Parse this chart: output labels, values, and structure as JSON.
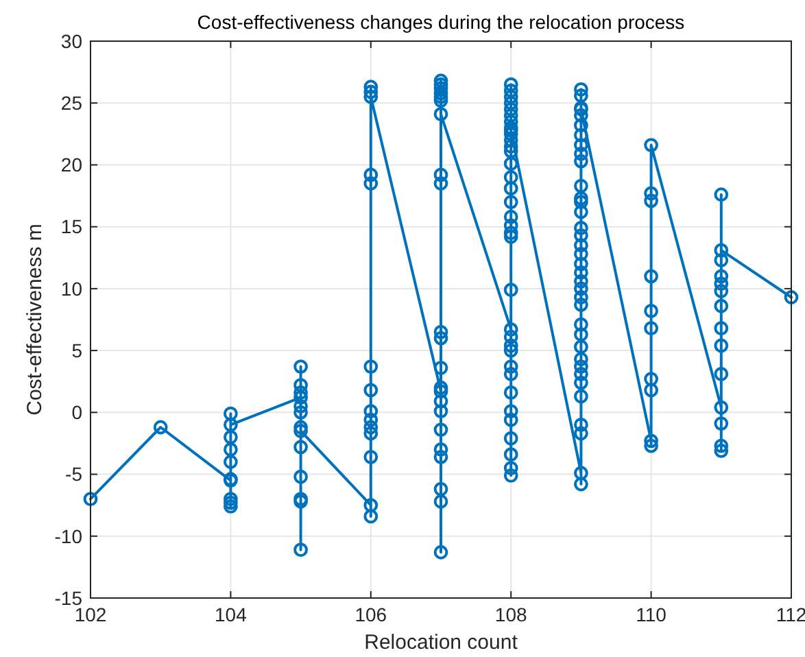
{
  "chart_data": {
    "type": "line",
    "title": "Cost-effectiveness changes during the relocation process",
    "xlabel": "Relocation count",
    "ylabel": "Cost-effectiveness m",
    "xlim": [
      102,
      112
    ],
    "xticks": [
      102,
      104,
      106,
      108,
      110,
      112
    ],
    "ylim": [
      -15,
      30
    ],
    "yticks": [
      -15,
      -10,
      -5,
      0,
      5,
      10,
      15,
      20,
      25,
      30
    ],
    "grid": true,
    "marker": "circle",
    "line_style": "solid",
    "series": [
      {
        "color": "#0072bd",
        "x": [
          102,
          103,
          104,
          104,
          104,
          104,
          104,
          104,
          104,
          104,
          104,
          104,
          105,
          105,
          105,
          105,
          105,
          105,
          105,
          105,
          105,
          105,
          105,
          105,
          105,
          106,
          106,
          106,
          106,
          106,
          106,
          106,
          106,
          106,
          106,
          106,
          106,
          106,
          106,
          107,
          107,
          107,
          107,
          107,
          107,
          107,
          107,
          107,
          107,
          107,
          107,
          107,
          107,
          107,
          107,
          107,
          107,
          107,
          107,
          107,
          107,
          108,
          108,
          108,
          108,
          108,
          108,
          108,
          108,
          108,
          108,
          108,
          108,
          108,
          108,
          108,
          108,
          108,
          108,
          108,
          108,
          108,
          108,
          108,
          108,
          108,
          108,
          108,
          108,
          108,
          108,
          108,
          108,
          108,
          108,
          108,
          109,
          109,
          109,
          109,
          109,
          109,
          109,
          109,
          109,
          109,
          109,
          109,
          109,
          109,
          109,
          109,
          109,
          109,
          109,
          109,
          109,
          109,
          109,
          109,
          109,
          109,
          109,
          109,
          109,
          109,
          109,
          109,
          109,
          109,
          109,
          109,
          110,
          110,
          110,
          110,
          110,
          110,
          110,
          110,
          110,
          110,
          111,
          111,
          111,
          111,
          111,
          111,
          111,
          111,
          111,
          111,
          111,
          111,
          111,
          111,
          112
        ],
        "values": [
          -7.0,
          -1.2,
          -5.5,
          -7.0,
          -7.3,
          -7.6,
          -5.4,
          -4.0,
          -3.0,
          -2.0,
          -0.1,
          -1.0,
          1.2,
          2.2,
          3.7,
          1.6,
          0.5,
          0.0,
          -1.2,
          -2.8,
          -5.2,
          -7.0,
          -7.2,
          -11.1,
          -1.5,
          -7.5,
          -8.4,
          -3.6,
          -1.7,
          -1.2,
          -0.6,
          0.1,
          1.8,
          3.7,
          18.5,
          19.2,
          25.9,
          26.3,
          25.5,
          1.7,
          0.9,
          0.1,
          -1.4,
          -3.0,
          -3.6,
          -6.2,
          -7.2,
          -11.3,
          2.0,
          3.6,
          6.0,
          6.5,
          18.5,
          19.2,
          25.2,
          25.5,
          25.8,
          26.2,
          26.5,
          26.8,
          24.1,
          6.7,
          6.1,
          5.4,
          5.0,
          3.7,
          3.1,
          1.6,
          0.1,
          -0.6,
          -2.1,
          -3.4,
          -4.5,
          -5.1,
          9.9,
          14.2,
          14.5,
          15.1,
          15.8,
          17.0,
          18.1,
          19.0,
          20.1,
          21.1,
          21.5,
          22.0,
          22.5,
          23.0,
          23.5,
          24.0,
          24.5,
          25.0,
          25.5,
          26.0,
          26.5,
          22.8,
          -4.9,
          -5.8,
          -1.7,
          -1.0,
          1.3,
          2.4,
          3.1,
          3.7,
          4.3,
          5.3,
          6.3,
          7.1,
          8.7,
          9.3,
          10.0,
          10.6,
          11.3,
          12.0,
          12.8,
          13.5,
          14.3,
          14.9,
          16.2,
          17.0,
          17.3,
          18.3,
          20.3,
          20.9,
          21.6,
          22.4,
          23.2,
          24.0,
          24.6,
          25.6,
          26.1,
          24.5,
          -2.3,
          -2.7,
          1.8,
          2.7,
          6.8,
          8.2,
          11.0,
          17.1,
          17.7,
          21.6,
          0.4,
          -0.9,
          -2.7,
          -3.1,
          3.1,
          5.4,
          6.8,
          8.6,
          9.8,
          10.4,
          11.0,
          12.3,
          17.6,
          13.1,
          9.3
        ]
      }
    ]
  }
}
